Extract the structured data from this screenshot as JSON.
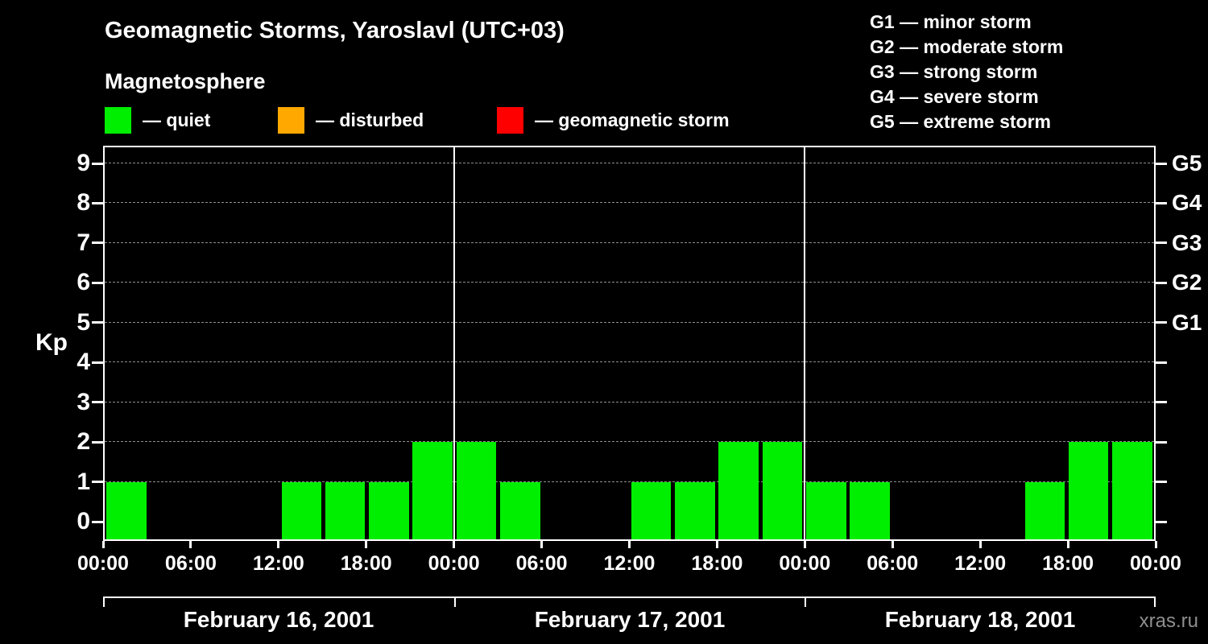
{
  "header": {
    "title": "Geomagnetic Storms, Yaroslavl (UTC+03)",
    "subtitle": "Magnetosphere"
  },
  "legend": {
    "items": [
      {
        "label": "— quiet",
        "color": "#00ee00"
      },
      {
        "label": "— disturbed",
        "color": "#ffa800"
      },
      {
        "label": "— geomagnetic storm",
        "color": "#ff0000"
      }
    ]
  },
  "storm_scale_legend": [
    "G1 — minor storm",
    "G2 — moderate storm",
    "G3 — strong storm",
    "G4 — severe storm",
    "G5 — extreme storm"
  ],
  "chart_data": {
    "type": "bar",
    "title": "Geomagnetic Storms, Yaroslavl (UTC+03)",
    "ylabel": "Kp",
    "ylim": [
      0,
      9
    ],
    "yticks": [
      0,
      1,
      2,
      3,
      4,
      5,
      6,
      7,
      8,
      9
    ],
    "grid": "horizontal-dashed",
    "bar_interval_hours": 3,
    "time_ticks": [
      "00:00",
      "06:00",
      "12:00",
      "18:00"
    ],
    "right_axis": [
      {
        "label": "G1",
        "kp": 5
      },
      {
        "label": "G2",
        "kp": 6
      },
      {
        "label": "G3",
        "kp": 7
      },
      {
        "label": "G4",
        "kp": 8
      },
      {
        "label": "G5",
        "kp": 9
      }
    ],
    "colors": {
      "quiet": "#00ee00",
      "disturbed": "#ffa800",
      "storm": "#ff0000"
    },
    "days": [
      {
        "date": "February 16, 2001",
        "values": [
          1,
          0,
          0,
          0,
          1,
          1,
          1,
          2
        ]
      },
      {
        "date": "February 17, 2001",
        "values": [
          2,
          1,
          0,
          0,
          1,
          1,
          2,
          2
        ]
      },
      {
        "date": "February 18, 2001",
        "values": [
          1,
          1,
          0,
          0,
          0,
          1,
          2,
          2
        ]
      }
    ]
  },
  "footer": {
    "watermark": "xras.ru"
  }
}
